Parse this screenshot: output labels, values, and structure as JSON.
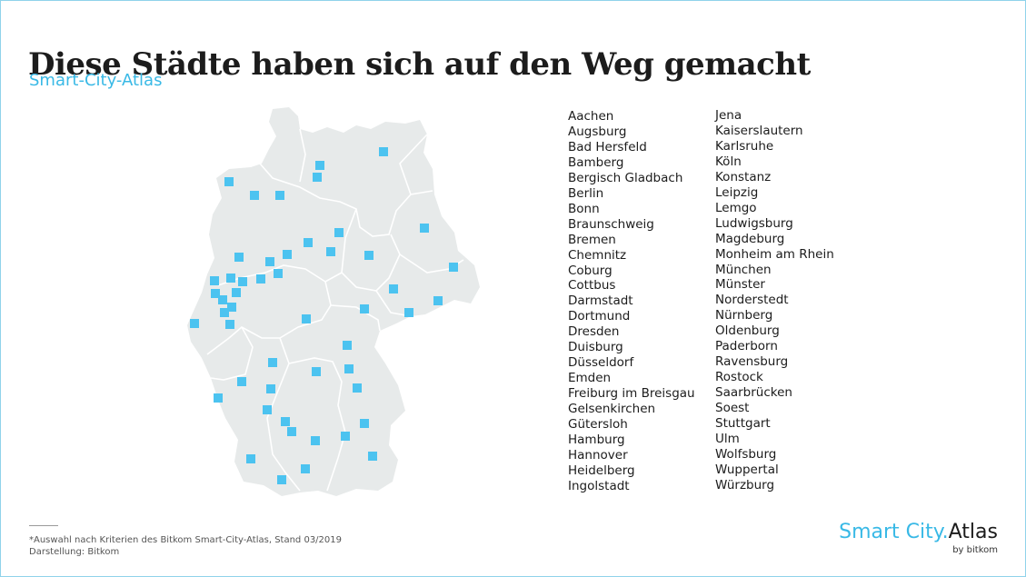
{
  "title": "Diese Städte haben sich auf den Weg gemacht",
  "subtitle": "Smart-City-Atlas",
  "cities_col1": [
    "Aachen",
    "Augsburg",
    "Bad Hersfeld",
    "Bamberg",
    "Bergisch Gladbach",
    "Berlin",
    "Bonn",
    "Braunschweig",
    "Bremen",
    "Chemnitz",
    "Coburg",
    "Cottbus",
    "Darmstadt",
    "Dortmund",
    "Dresden",
    "Duisburg",
    "Düsseldorf",
    "Emden",
    "Freiburg im Breisgau",
    "Gelsenkirchen",
    "Gütersloh",
    "Hamburg",
    "Hannover",
    "Heidelberg",
    "Ingolstadt"
  ],
  "cities_col2": [
    "Jena",
    "Kaiserslautern",
    "Karlsruhe",
    "Köln",
    "Konstanz",
    "Leipzig",
    "Lemgo",
    "Ludwigsburg",
    "Magdeburg",
    "Monheim am Rhein",
    "München",
    "Münster",
    "Norderstedt",
    "Nürnberg",
    "Oldenburg",
    "Paderborn",
    "Ravensburg",
    "Rostock",
    "Saarbrücken",
    "Soest",
    "Stuttgart",
    "Ulm",
    "Wolfsburg",
    "Wuppertal",
    "Würzburg"
  ],
  "footnote": "*Auswahl nach Kriterien des Bitkom Smart-City-Atlas, Stand 03/2019",
  "credit": "Darstellung: Bitkom",
  "logo": {
    "word1": "Smart City",
    "dot": ".",
    "word2": "Atlas",
    "byline": "by bitkom"
  },
  "colors": {
    "accent": "#39b9e6",
    "marker": "#4cc3f0",
    "land": "#e7eaea",
    "border": "#ffffff",
    "text": "#1c1c1c"
  }
}
